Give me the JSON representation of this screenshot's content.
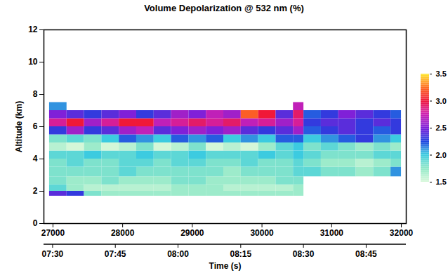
{
  "chart_data": {
    "type": "heatmap",
    "title": "Volume Depolarization @ 532 nm (%)",
    "x_label": "Time (s)",
    "y_label": "Altitude (km)",
    "xlim": [
      26870,
      32070
    ],
    "xticks": [
      27000,
      28000,
      29000,
      30000,
      31000,
      32000
    ],
    "x2ticks": [
      {
        "value": 27000,
        "label": "07:30"
      },
      {
        "value": 27900,
        "label": "07:45"
      },
      {
        "value": 28800,
        "label": "08:00"
      },
      {
        "value": 29700,
        "label": "08:15"
      },
      {
        "value": 30600,
        "label": "08:30"
      },
      {
        "value": 31500,
        "label": "08:45"
      }
    ],
    "ylim": [
      0,
      12
    ],
    "yticks": [
      0,
      2,
      4,
      6,
      8,
      10,
      12
    ],
    "colorbar_range": [
      1.5,
      3.5
    ],
    "colorbar_ticks": [
      1.5,
      {
        "value": 2.0,
        "label": "2.0"
      },
      2.5,
      {
        "value": 3.0,
        "label": "3.0"
      },
      3.5
    ],
    "time_edges": [
      26950,
      27200,
      27450,
      27700,
      27950,
      28200,
      28450,
      28700,
      28950,
      29200,
      29450,
      29700,
      29950,
      30200,
      30450,
      30600,
      30850,
      31100,
      31350,
      31600,
      31850,
      32000
    ],
    "altitude_edges": [
      1.7,
      2.0,
      2.4,
      2.9,
      3.5,
      4.0,
      4.5,
      5.0,
      5.5,
      6.0,
      6.5,
      7.0,
      7.5
    ],
    "cells": [
      [
        2.4,
        2.3,
        1.8,
        1.7,
        1.7,
        1.7,
        1.7,
        1.7,
        1.7,
        1.7,
        1.7,
        1.7,
        1.7,
        1.7,
        1.7,
        null,
        null,
        null,
        null,
        null,
        null
      ],
      [
        1.9,
        1.7,
        1.6,
        1.6,
        1.6,
        1.6,
        1.6,
        1.7,
        1.7,
        1.7,
        1.6,
        1.6,
        1.6,
        1.6,
        1.7,
        null,
        null,
        null,
        null,
        null,
        null
      ],
      [
        1.8,
        1.7,
        1.7,
        1.8,
        1.7,
        1.7,
        1.7,
        1.8,
        1.8,
        1.7,
        1.7,
        1.7,
        1.7,
        1.8,
        1.8,
        null,
        null,
        null,
        null,
        null,
        null
      ],
      [
        1.8,
        1.8,
        1.8,
        1.8,
        1.9,
        1.8,
        1.8,
        1.8,
        1.8,
        1.8,
        1.7,
        1.8,
        1.8,
        1.8,
        1.9,
        1.9,
        1.8,
        1.8,
        1.7,
        1.8,
        2.1
      ],
      [
        1.8,
        1.9,
        1.8,
        1.8,
        1.9,
        1.9,
        1.8,
        1.9,
        1.9,
        1.8,
        1.8,
        1.9,
        1.8,
        1.8,
        1.9,
        1.8,
        1.7,
        1.7,
        1.6,
        1.7,
        1.8
      ],
      [
        1.9,
        1.9,
        2.0,
        1.9,
        1.9,
        2.0,
        1.9,
        1.9,
        2.0,
        1.9,
        1.9,
        1.9,
        2.0,
        1.9,
        2.0,
        1.9,
        1.8,
        1.8,
        1.8,
        1.9,
        1.9
      ],
      [
        1.6,
        1.5,
        1.7,
        1.5,
        1.6,
        1.8,
        1.5,
        1.6,
        1.8,
        1.5,
        1.6,
        1.5,
        1.7,
        1.9,
        2.0,
        1.8,
        1.9,
        1.8,
        1.7,
        1.8,
        1.7
      ],
      [
        1.8,
        1.9,
        1.8,
        2.0,
        2.2,
        2.1,
        2.0,
        2.2,
        2.1,
        2.2,
        2.0,
        2.1,
        2.0,
        2.2,
        2.2,
        2.0,
        2.1,
        2.2,
        2.3,
        2.1,
        2.0
      ],
      [
        2.3,
        2.6,
        2.3,
        2.4,
        2.6,
        2.7,
        2.4,
        2.5,
        2.6,
        2.5,
        2.6,
        2.4,
        2.3,
        2.4,
        2.6,
        2.2,
        2.3,
        2.4,
        2.3,
        2.2,
        2.3
      ],
      [
        2.8,
        3.0,
        2.6,
        2.8,
        3.0,
        3.0,
        2.7,
        2.8,
        2.9,
        2.8,
        2.9,
        2.7,
        2.8,
        2.6,
        2.8,
        2.3,
        2.4,
        2.4,
        2.3,
        2.4,
        2.3
      ],
      [
        2.5,
        2.4,
        2.3,
        2.4,
        2.5,
        2.3,
        2.4,
        2.6,
        2.5,
        2.7,
        2.6,
        3.2,
        3.0,
        2.4,
        2.9,
        2.2,
        2.3,
        2.5,
        2.4,
        2.3,
        2.2
      ],
      [
        2.1,
        null,
        null,
        null,
        null,
        null,
        null,
        null,
        null,
        null,
        null,
        null,
        null,
        null,
        2.7,
        null,
        null,
        null,
        null,
        null,
        null
      ]
    ]
  }
}
